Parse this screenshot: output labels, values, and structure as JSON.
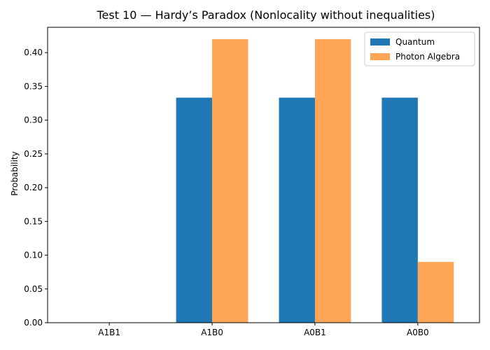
{
  "chart_data": {
    "type": "bar",
    "title": "Test 10 — Hardy’s Paradox (Nonlocality without inequalities)",
    "xlabel": "",
    "ylabel": "Probability",
    "categories": [
      "A1B1",
      "A1B0",
      "A0B1",
      "A0B0"
    ],
    "series": [
      {
        "name": "Quantum",
        "values": [
          0.0,
          0.3333,
          0.3333,
          0.3333
        ],
        "color": "#1f77b4"
      },
      {
        "name": "Photon Algebra",
        "values": [
          0.0,
          0.42,
          0.42,
          0.09
        ],
        "color": "#ffa555"
      }
    ],
    "ylim": [
      0,
      0.4375
    ],
    "yticks": [
      "0.00",
      "0.05",
      "0.10",
      "0.15",
      "0.20",
      "0.25",
      "0.30",
      "0.35",
      "0.40"
    ],
    "legend_position": "top-right",
    "grid": false
  }
}
